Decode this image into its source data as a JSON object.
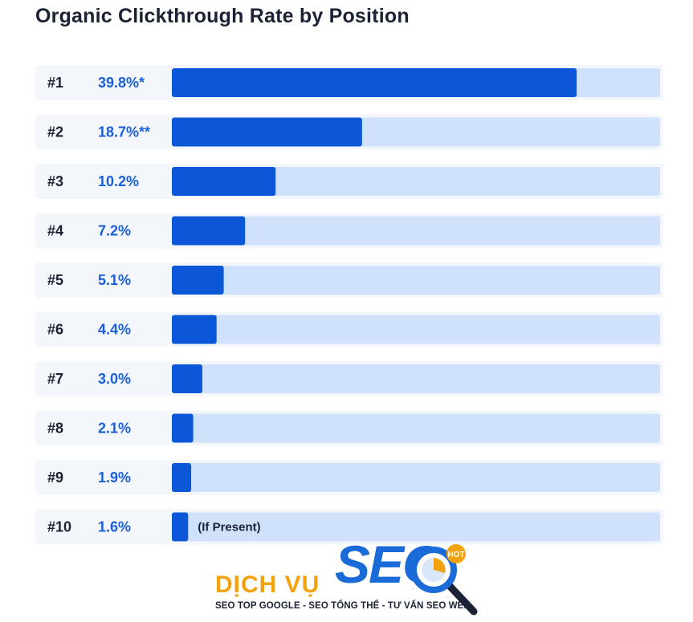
{
  "chart_data": {
    "type": "bar",
    "orientation": "horizontal",
    "title": "Organic Clickthrough Rate by Position",
    "xlabel": "",
    "ylabel": "",
    "xlim": [
      0,
      48
    ],
    "unit": "%",
    "categories": [
      "#1",
      "#2",
      "#3",
      "#4",
      "#5",
      "#6",
      "#7",
      "#8",
      "#9",
      "#10"
    ],
    "values": [
      39.8,
      18.7,
      10.2,
      7.2,
      5.1,
      4.4,
      3.0,
      2.1,
      1.9,
      1.6
    ],
    "value_labels": [
      "39.8%*",
      "18.7%**",
      "10.2%",
      "7.2%",
      "5.1%",
      "4.4%",
      "3.0%",
      "2.1%",
      "1.9%",
      "1.6%"
    ],
    "annotations": [
      {
        "category": "#10",
        "text": "(If Present)"
      }
    ],
    "colors": {
      "bar": "#0b57d8",
      "track": "#cfe1fb",
      "row_background": "#f3f6fb",
      "rank_text": "#1b2234",
      "value_text": "#1a5fd8"
    }
  },
  "watermark": {
    "brand_prefix": "DỊCH VỤ",
    "brand_main": "SEO",
    "badge": "HOT",
    "tagline": "SEO TOP GOOGLE - SEO TỔNG THỂ - TƯ VẤN SEO WEB"
  }
}
